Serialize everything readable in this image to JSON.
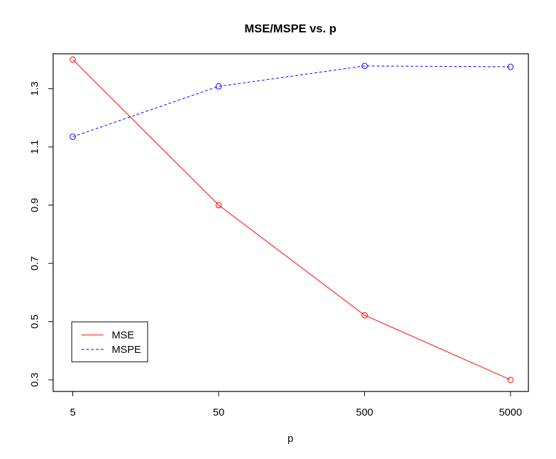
{
  "chart_data": {
    "type": "line",
    "title": "MSE/MSPE vs. p",
    "xlabel": "p",
    "ylabel": "",
    "x_scale": "log",
    "x": [
      5,
      50,
      500,
      5000
    ],
    "x_ticks": [
      "5",
      "50",
      "500",
      "5000"
    ],
    "y_ticks": [
      "0.3",
      "0.5",
      "0.7",
      "0.9",
      "1.1",
      "1.3"
    ],
    "ylim": [
      0.26,
      1.42
    ],
    "grid": false,
    "legend_position": "bottom-left",
    "series": [
      {
        "name": "MSE",
        "color": "#ff0000",
        "line_style": "solid",
        "marker": "open-circle",
        "values": [
          1.4,
          0.9,
          0.522,
          0.3
        ]
      },
      {
        "name": "MSPE",
        "color": "#0000ff",
        "line_style": "dashed",
        "marker": "open-circle",
        "values": [
          1.135,
          1.308,
          1.378,
          1.375
        ]
      }
    ]
  }
}
